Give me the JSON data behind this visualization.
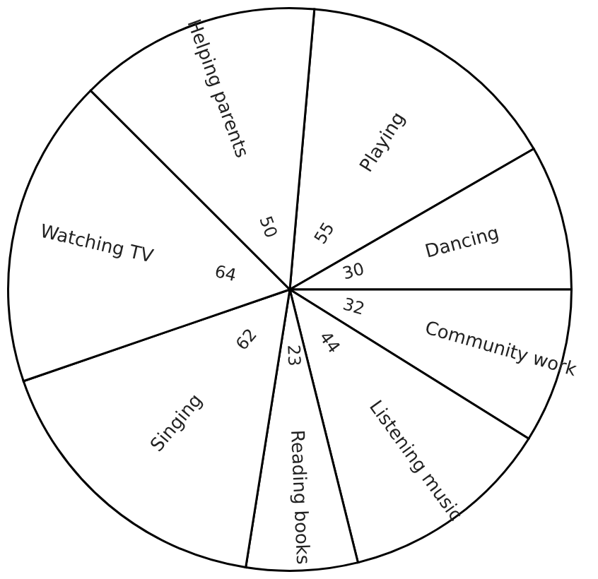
{
  "chart_data": {
    "type": "pie",
    "categories": [
      "Playing",
      "Dancing",
      "Community work",
      "Listening music",
      "Reading books",
      "Singing",
      "Watching TV",
      "Helping parents"
    ],
    "values": [
      55,
      30,
      32,
      44,
      23,
      62,
      64,
      50
    ],
    "colors": [
      "#ffffff",
      "#ffffff",
      "#ffffff",
      "#ffffff",
      "#ffffff",
      "#ffffff",
      "#ffffff",
      "#ffffff"
    ],
    "data_labels": true
  }
}
